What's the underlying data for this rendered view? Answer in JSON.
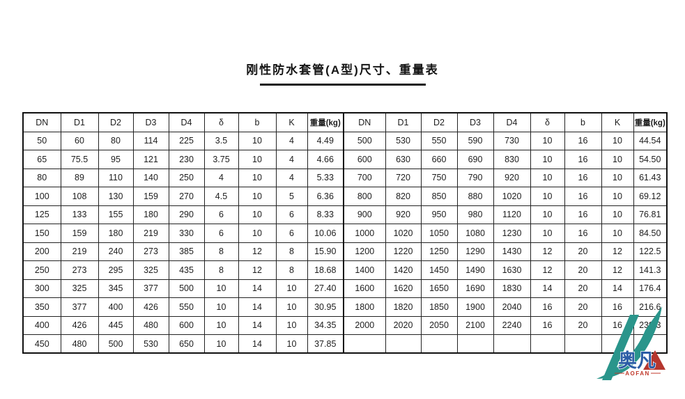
{
  "title": "刚性防水套管(A型)尺寸、重量表",
  "table": {
    "columns": [
      "DN",
      "D1",
      "D2",
      "D3",
      "D4",
      "δ",
      "b",
      "K",
      "重量(kg)"
    ],
    "rows_left": [
      [
        "50",
        "60",
        "80",
        "114",
        "225",
        "3.5",
        "10",
        "4",
        "4.49"
      ],
      [
        "65",
        "75.5",
        "95",
        "121",
        "230",
        "3.75",
        "10",
        "4",
        "4.66"
      ],
      [
        "80",
        "89",
        "110",
        "140",
        "250",
        "4",
        "10",
        "4",
        "5.33"
      ],
      [
        "100",
        "108",
        "130",
        "159",
        "270",
        "4.5",
        "10",
        "5",
        "6.36"
      ],
      [
        "125",
        "133",
        "155",
        "180",
        "290",
        "6",
        "10",
        "6",
        "8.33"
      ],
      [
        "150",
        "159",
        "180",
        "219",
        "330",
        "6",
        "10",
        "6",
        "10.06"
      ],
      [
        "200",
        "219",
        "240",
        "273",
        "385",
        "8",
        "12",
        "8",
        "15.90"
      ],
      [
        "250",
        "273",
        "295",
        "325",
        "435",
        "8",
        "12",
        "8",
        "18.68"
      ],
      [
        "300",
        "325",
        "345",
        "377",
        "500",
        "10",
        "14",
        "10",
        "27.40"
      ],
      [
        "350",
        "377",
        "400",
        "426",
        "550",
        "10",
        "14",
        "10",
        "30.95"
      ],
      [
        "400",
        "426",
        "445",
        "480",
        "600",
        "10",
        "14",
        "10",
        "34.35"
      ],
      [
        "450",
        "480",
        "500",
        "530",
        "650",
        "10",
        "14",
        "10",
        "37.85"
      ]
    ],
    "rows_right": [
      [
        "500",
        "530",
        "550",
        "590",
        "730",
        "10",
        "16",
        "10",
        "44.54"
      ],
      [
        "600",
        "630",
        "660",
        "690",
        "830",
        "10",
        "16",
        "10",
        "54.50"
      ],
      [
        "700",
        "720",
        "750",
        "790",
        "920",
        "10",
        "16",
        "10",
        "61.43"
      ],
      [
        "800",
        "820",
        "850",
        "880",
        "1020",
        "10",
        "16",
        "10",
        "69.12"
      ],
      [
        "900",
        "920",
        "950",
        "980",
        "1120",
        "10",
        "16",
        "10",
        "76.81"
      ],
      [
        "1000",
        "1020",
        "1050",
        "1080",
        "1230",
        "10",
        "16",
        "10",
        "84.50"
      ],
      [
        "1200",
        "1220",
        "1250",
        "1290",
        "1430",
        "12",
        "20",
        "12",
        "122.5"
      ],
      [
        "1400",
        "1420",
        "1450",
        "1490",
        "1630",
        "12",
        "20",
        "12",
        "141.3"
      ],
      [
        "1600",
        "1620",
        "1650",
        "1690",
        "1830",
        "14",
        "20",
        "14",
        "176.4"
      ],
      [
        "1800",
        "1820",
        "1850",
        "1900",
        "2040",
        "16",
        "20",
        "16",
        "216.6"
      ],
      [
        "2000",
        "2020",
        "2050",
        "2100",
        "2240",
        "16",
        "20",
        "16",
        "239.3"
      ],
      [
        "",
        "",
        "",
        "",
        "",
        "",
        "",
        "",
        ""
      ]
    ]
  },
  "logo": {
    "text_cn": "奥凡",
    "text_en": "AOFAN",
    "colors": {
      "teal": "#2a958b",
      "red": "#b5362e",
      "blue": "#2b5ca5",
      "red_text": "#c0392b"
    }
  }
}
